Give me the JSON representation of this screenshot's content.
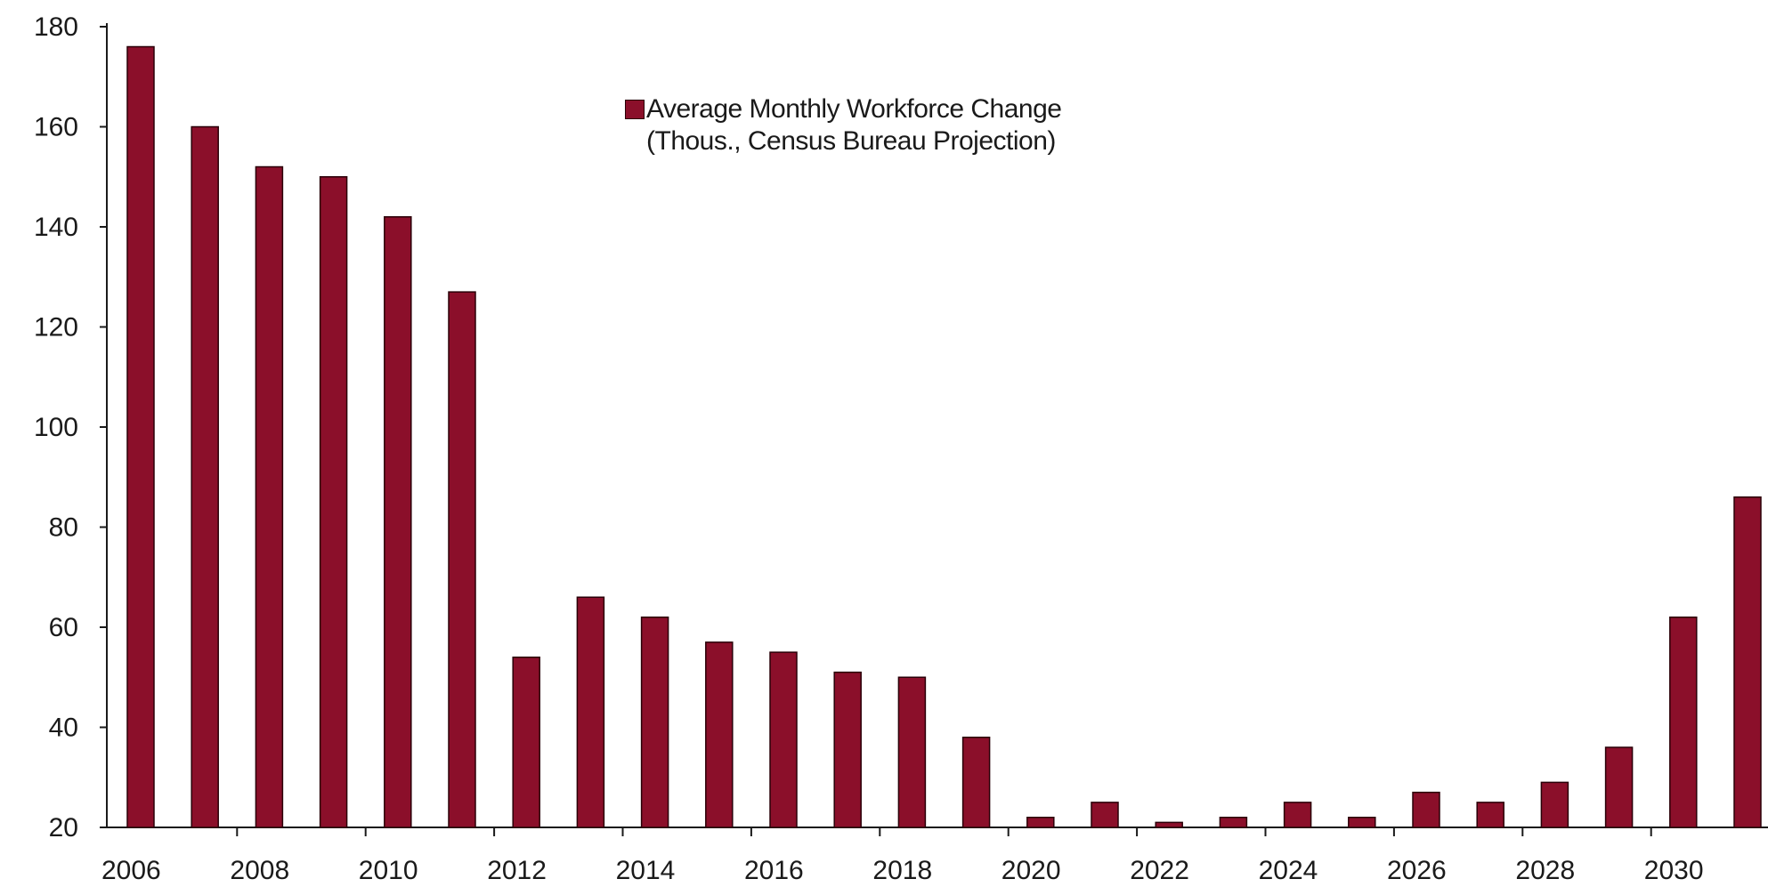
{
  "colors": {
    "bar_fill": "#8b0f2a",
    "bar_stroke": "#2a0008",
    "axis": "#1a1a1a",
    "background": "#ffffff"
  },
  "chart_data": {
    "type": "bar",
    "title": "",
    "xlabel": "",
    "ylabel": "",
    "ylim": [
      20,
      180
    ],
    "yticks": [
      20,
      40,
      60,
      80,
      100,
      120,
      140,
      160,
      180
    ],
    "grid": false,
    "legend_position": "top-center",
    "x_tick_labels": [
      "2006",
      "2008",
      "2010",
      "2012",
      "2014",
      "2016",
      "2018",
      "2020",
      "2022",
      "2024",
      "2026",
      "2028",
      "2030"
    ],
    "categories": [
      "2006",
      "2007",
      "2008",
      "2009",
      "2010",
      "2011",
      "2012",
      "2013",
      "2014",
      "2015",
      "2016",
      "2017",
      "2018",
      "2019",
      "2020",
      "2021",
      "2022",
      "2023",
      "2024",
      "2025",
      "2026",
      "2027",
      "2028",
      "2029",
      "2030",
      "2031"
    ],
    "series": [
      {
        "name": "Average Monthly Workforce Change (Thous., Census Bureau Projection)",
        "color": "#8b0f2a",
        "values": [
          176,
          160,
          152,
          150,
          142,
          127,
          54,
          66,
          62,
          57,
          55,
          51,
          50,
          38,
          22,
          25,
          21,
          22,
          25,
          22,
          27,
          25,
          29,
          36,
          62,
          86
        ]
      }
    ]
  }
}
